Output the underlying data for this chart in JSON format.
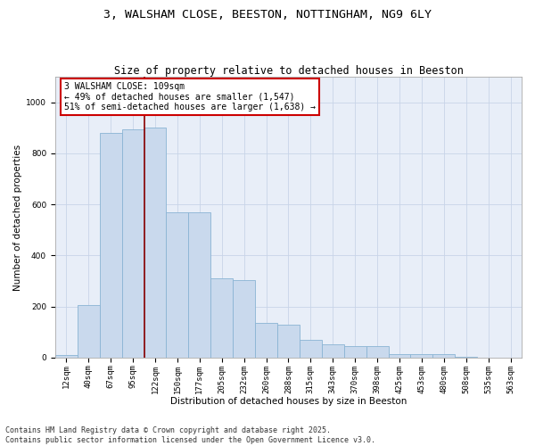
{
  "title_line1": "3, WALSHAM CLOSE, BEESTON, NOTTINGHAM, NG9 6LY",
  "title_line2": "Size of property relative to detached houses in Beeston",
  "xlabel": "Distribution of detached houses by size in Beeston",
  "ylabel": "Number of detached properties",
  "categories": [
    "12sqm",
    "40sqm",
    "67sqm",
    "95sqm",
    "122sqm",
    "150sqm",
    "177sqm",
    "205sqm",
    "232sqm",
    "260sqm",
    "288sqm",
    "315sqm",
    "343sqm",
    "370sqm",
    "398sqm",
    "425sqm",
    "453sqm",
    "480sqm",
    "508sqm",
    "535sqm",
    "563sqm"
  ],
  "values": [
    10,
    205,
    880,
    895,
    900,
    570,
    570,
    310,
    305,
    135,
    130,
    68,
    52,
    45,
    44,
    15,
    14,
    14,
    2,
    1,
    1
  ],
  "bar_color": "#c9d9ed",
  "bar_edge_color": "#8ab4d4",
  "vline_color": "#8b0000",
  "vline_x_index": 3.5,
  "annotation_text": "3 WALSHAM CLOSE: 109sqm\n← 49% of detached houses are smaller (1,547)\n51% of semi-detached houses are larger (1,638) →",
  "annotation_box_color": "#ffffff",
  "annotation_box_edge_color": "#cc0000",
  "ylim": [
    0,
    1100
  ],
  "yticks": [
    0,
    200,
    400,
    600,
    800,
    1000
  ],
  "grid_color": "#c8d4e8",
  "bg_color": "#e8eef8",
  "footnote": "Contains HM Land Registry data © Crown copyright and database right 2025.\nContains public sector information licensed under the Open Government Licence v3.0.",
  "title_fontsize": 9.5,
  "subtitle_fontsize": 8.5,
  "axis_label_fontsize": 7.5,
  "tick_fontsize": 6.5,
  "annotation_fontsize": 7,
  "footnote_fontsize": 6
}
